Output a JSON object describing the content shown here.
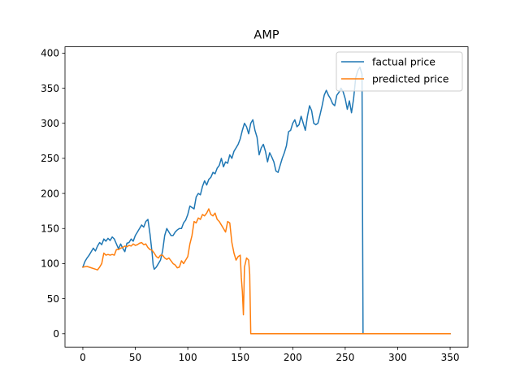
{
  "chart_data": {
    "type": "line",
    "title": "AMP",
    "xlabel": "",
    "ylabel": "",
    "xlim": [
      -17,
      367
    ],
    "ylim": [
      -19,
      409
    ],
    "xticks": [
      0,
      50,
      100,
      150,
      200,
      250,
      300,
      350
    ],
    "yticks": [
      0,
      50,
      100,
      150,
      200,
      250,
      300,
      350,
      400
    ],
    "grid": false,
    "legend_position": "top-right",
    "series": [
      {
        "name": "factual price",
        "color": "#1f77b4",
        "points": [
          [
            0,
            95
          ],
          [
            2,
            103
          ],
          [
            4,
            108
          ],
          [
            6,
            112
          ],
          [
            8,
            117
          ],
          [
            10,
            122
          ],
          [
            12,
            118
          ],
          [
            14,
            125
          ],
          [
            16,
            130
          ],
          [
            18,
            127
          ],
          [
            20,
            135
          ],
          [
            22,
            132
          ],
          [
            24,
            136
          ],
          [
            26,
            133
          ],
          [
            28,
            138
          ],
          [
            30,
            135
          ],
          [
            32,
            128
          ],
          [
            34,
            121
          ],
          [
            36,
            128
          ],
          [
            38,
            122
          ],
          [
            40,
            117
          ],
          [
            42,
            129
          ],
          [
            44,
            130
          ],
          [
            46,
            135
          ],
          [
            48,
            132
          ],
          [
            50,
            140
          ],
          [
            52,
            145
          ],
          [
            54,
            150
          ],
          [
            56,
            155
          ],
          [
            58,
            152
          ],
          [
            60,
            160
          ],
          [
            62,
            163
          ],
          [
            64,
            142
          ],
          [
            66,
            115
          ],
          [
            67,
            98
          ],
          [
            68,
            92
          ],
          [
            70,
            95
          ],
          [
            72,
            100
          ],
          [
            74,
            105
          ],
          [
            76,
            118
          ],
          [
            78,
            140
          ],
          [
            80,
            150
          ],
          [
            82,
            145
          ],
          [
            84,
            140
          ],
          [
            86,
            140
          ],
          [
            88,
            145
          ],
          [
            90,
            148
          ],
          [
            92,
            150
          ],
          [
            94,
            150
          ],
          [
            96,
            158
          ],
          [
            98,
            162
          ],
          [
            100,
            170
          ],
          [
            102,
            182
          ],
          [
            104,
            180
          ],
          [
            106,
            178
          ],
          [
            108,
            195
          ],
          [
            110,
            200
          ],
          [
            112,
            198
          ],
          [
            114,
            210
          ],
          [
            116,
            218
          ],
          [
            118,
            212
          ],
          [
            120,
            220
          ],
          [
            122,
            223
          ],
          [
            124,
            230
          ],
          [
            126,
            228
          ],
          [
            128,
            236
          ],
          [
            130,
            240
          ],
          [
            132,
            250
          ],
          [
            134,
            238
          ],
          [
            136,
            245
          ],
          [
            138,
            243
          ],
          [
            140,
            255
          ],
          [
            142,
            250
          ],
          [
            144,
            260
          ],
          [
            146,
            265
          ],
          [
            148,
            270
          ],
          [
            150,
            278
          ],
          [
            152,
            290
          ],
          [
            154,
            300
          ],
          [
            156,
            295
          ],
          [
            158,
            285
          ],
          [
            160,
            300
          ],
          [
            162,
            305
          ],
          [
            164,
            290
          ],
          [
            166,
            280
          ],
          [
            168,
            255
          ],
          [
            170,
            265
          ],
          [
            172,
            270
          ],
          [
            174,
            260
          ],
          [
            176,
            245
          ],
          [
            178,
            258
          ],
          [
            180,
            252
          ],
          [
            182,
            245
          ],
          [
            184,
            232
          ],
          [
            186,
            230
          ],
          [
            188,
            240
          ],
          [
            190,
            250
          ],
          [
            192,
            258
          ],
          [
            194,
            268
          ],
          [
            196,
            288
          ],
          [
            198,
            290
          ],
          [
            200,
            300
          ],
          [
            202,
            305
          ],
          [
            204,
            295
          ],
          [
            206,
            298
          ],
          [
            208,
            310
          ],
          [
            210,
            300
          ],
          [
            212,
            290
          ],
          [
            214,
            310
          ],
          [
            216,
            325
          ],
          [
            218,
            318
          ],
          [
            220,
            300
          ],
          [
            222,
            298
          ],
          [
            224,
            300
          ],
          [
            226,
            312
          ],
          [
            228,
            325
          ],
          [
            230,
            340
          ],
          [
            232,
            347
          ],
          [
            234,
            340
          ],
          [
            236,
            335
          ],
          [
            238,
            328
          ],
          [
            240,
            325
          ],
          [
            242,
            340
          ],
          [
            244,
            344
          ],
          [
            246,
            350
          ],
          [
            248,
            345
          ],
          [
            250,
            335
          ],
          [
            252,
            320
          ],
          [
            254,
            332
          ],
          [
            256,
            315
          ],
          [
            258,
            335
          ],
          [
            260,
            365
          ],
          [
            262,
            375
          ],
          [
            264,
            380
          ],
          [
            266,
            370
          ],
          [
            267,
            0
          ],
          [
            280,
            0
          ],
          [
            300,
            0
          ],
          [
            320,
            0
          ],
          [
            340,
            0
          ],
          [
            350,
            0
          ]
        ]
      },
      {
        "name": "predicted price",
        "color": "#ff7f0e",
        "points": [
          [
            0,
            95
          ],
          [
            4,
            96
          ],
          [
            8,
            94
          ],
          [
            12,
            92
          ],
          [
            14,
            91
          ],
          [
            16,
            95
          ],
          [
            18,
            100
          ],
          [
            20,
            115
          ],
          [
            22,
            112
          ],
          [
            24,
            113
          ],
          [
            26,
            112
          ],
          [
            28,
            113
          ],
          [
            30,
            112
          ],
          [
            32,
            120
          ],
          [
            34,
            120
          ],
          [
            36,
            122
          ],
          [
            38,
            123
          ],
          [
            40,
            125
          ],
          [
            42,
            124
          ],
          [
            44,
            126
          ],
          [
            46,
            125
          ],
          [
            48,
            128
          ],
          [
            50,
            126
          ],
          [
            52,
            127
          ],
          [
            54,
            129
          ],
          [
            56,
            130
          ],
          [
            58,
            127
          ],
          [
            60,
            128
          ],
          [
            62,
            123
          ],
          [
            64,
            120
          ],
          [
            66,
            119
          ],
          [
            68,
            115
          ],
          [
            70,
            110
          ],
          [
            72,
            108
          ],
          [
            74,
            112
          ],
          [
            76,
            112
          ],
          [
            78,
            108
          ],
          [
            80,
            106
          ],
          [
            82,
            108
          ],
          [
            84,
            104
          ],
          [
            86,
            100
          ],
          [
            88,
            98
          ],
          [
            90,
            94
          ],
          [
            92,
            95
          ],
          [
            94,
            104
          ],
          [
            96,
            100
          ],
          [
            98,
            105
          ],
          [
            100,
            110
          ],
          [
            102,
            128
          ],
          [
            104,
            140
          ],
          [
            106,
            160
          ],
          [
            108,
            158
          ],
          [
            110,
            165
          ],
          [
            112,
            163
          ],
          [
            114,
            170
          ],
          [
            116,
            168
          ],
          [
            118,
            172
          ],
          [
            120,
            178
          ],
          [
            122,
            170
          ],
          [
            124,
            168
          ],
          [
            126,
            172
          ],
          [
            128,
            163
          ],
          [
            130,
            160
          ],
          [
            132,
            155
          ],
          [
            134,
            150
          ],
          [
            136,
            145
          ],
          [
            138,
            160
          ],
          [
            140,
            158
          ],
          [
            142,
            130
          ],
          [
            144,
            115
          ],
          [
            146,
            105
          ],
          [
            148,
            110
          ],
          [
            150,
            112
          ],
          [
            151,
            80
          ],
          [
            152,
            60
          ],
          [
            153,
            27
          ],
          [
            154,
            95
          ],
          [
            156,
            108
          ],
          [
            158,
            105
          ],
          [
            159,
            85
          ],
          [
            160,
            0
          ],
          [
            180,
            0
          ],
          [
            200,
            0
          ],
          [
            250,
            0
          ],
          [
            300,
            0
          ],
          [
            350,
            0
          ]
        ]
      }
    ]
  }
}
